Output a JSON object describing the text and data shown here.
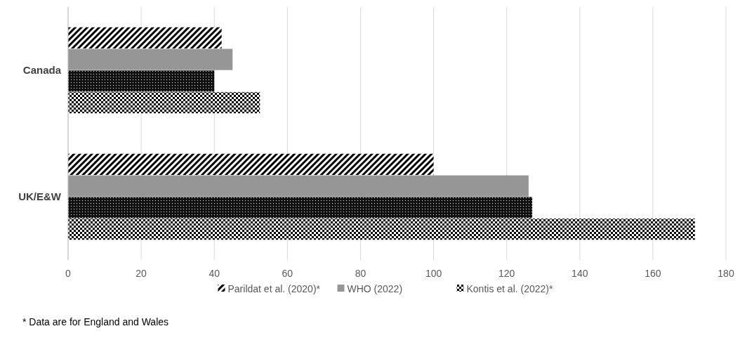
{
  "chart_data": {
    "type": "bar",
    "orientation": "horizontal",
    "categories": [
      "Canada",
      "UK/E&W"
    ],
    "series": [
      {
        "name": "Parildat et al. (2020)*",
        "color": "#000000",
        "values": [
          42,
          100
        ]
      },
      {
        "name": "WHO (2022)",
        "color": "#969696",
        "values": [
          45,
          126
        ]
      },
      {
        "color": "#111111",
        "values": [
          40,
          127
        ]
      },
      {
        "name": "Kontis et al. (2022)*",
        "color": "#000000",
        "values": [
          52.5,
          171.5
        ]
      }
    ],
    "xlim": [
      0,
      180
    ],
    "xticks": [
      0,
      20,
      40,
      60,
      80,
      100,
      120,
      140,
      160,
      180
    ],
    "grid": "x",
    "legend": "bottom",
    "annotations": [
      "* Data are for England and Wales"
    ]
  }
}
